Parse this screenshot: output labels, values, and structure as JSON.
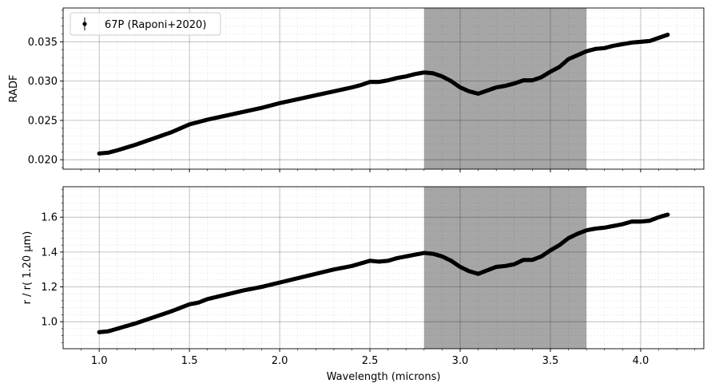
{
  "chart_data": [
    {
      "type": "scatter",
      "panel": "top",
      "ylabel": "RADF",
      "xlim": [
        0.8,
        4.35
      ],
      "ylim": [
        0.0188,
        0.0393
      ],
      "yticks": [
        0.02,
        0.025,
        0.03,
        0.035
      ],
      "ytick_labels": [
        "0.020",
        "0.025",
        "0.030",
        "0.035"
      ],
      "shaded_region_x": [
        2.8,
        3.7
      ],
      "shade_color": "#a6a6a6",
      "grid": true,
      "minor_grid": true,
      "legend": {
        "placement": "top-left",
        "entries": [
          "67P (Raponi+2020)"
        ]
      },
      "series": [
        {
          "name": "67P (Raponi+2020)",
          "color": "#000000",
          "x": [
            1.0,
            1.05,
            1.1,
            1.2,
            1.3,
            1.4,
            1.45,
            1.5,
            1.55,
            1.6,
            1.7,
            1.8,
            1.9,
            2.0,
            2.1,
            2.2,
            2.3,
            2.4,
            2.45,
            2.5,
            2.55,
            2.6,
            2.65,
            2.7,
            2.75,
            2.8,
            2.85,
            2.9,
            2.95,
            3.0,
            3.05,
            3.1,
            3.15,
            3.2,
            3.25,
            3.3,
            3.35,
            3.4,
            3.45,
            3.5,
            3.55,
            3.6,
            3.65,
            3.7,
            3.75,
            3.8,
            3.85,
            3.9,
            3.95,
            4.0,
            4.05,
            4.1,
            4.15
          ],
          "y": [
            0.0208,
            0.0209,
            0.0212,
            0.0219,
            0.0227,
            0.0235,
            0.024,
            0.0245,
            0.0248,
            0.0251,
            0.0256,
            0.0261,
            0.0266,
            0.0272,
            0.0277,
            0.0282,
            0.0287,
            0.0292,
            0.0295,
            0.0299,
            0.0299,
            0.0301,
            0.0304,
            0.0306,
            0.0309,
            0.0311,
            0.031,
            0.0306,
            0.03,
            0.0292,
            0.0287,
            0.0284,
            0.0288,
            0.0292,
            0.0294,
            0.0297,
            0.0301,
            0.0301,
            0.0305,
            0.0312,
            0.0318,
            0.0328,
            0.0333,
            0.0338,
            0.0341,
            0.0342,
            0.0345,
            0.0347,
            0.0349,
            0.035,
            0.0351,
            0.0355,
            0.0359
          ]
        }
      ]
    },
    {
      "type": "scatter",
      "panel": "bottom",
      "xlabel": "Wavelength (microns)",
      "ylabel": "r / r( 1.20 μm)",
      "xlim": [
        0.8,
        4.35
      ],
      "ylim": [
        0.845,
        1.775
      ],
      "xticks": [
        1.0,
        1.5,
        2.0,
        2.5,
        3.0,
        3.5,
        4.0
      ],
      "xtick_labels": [
        "1.0",
        "1.5",
        "2.0",
        "2.5",
        "3.0",
        "3.5",
        "4.0"
      ],
      "yticks": [
        1.0,
        1.2,
        1.4,
        1.6
      ],
      "ytick_labels": [
        "1.0",
        "1.2",
        "1.4",
        "1.6"
      ],
      "shaded_region_x": [
        2.8,
        3.7
      ],
      "shade_color": "#a6a6a6",
      "grid": true,
      "minor_grid": true,
      "series": [
        {
          "name": "67P (Raponi+2020)",
          "color": "#000000",
          "x": [
            1.0,
            1.05,
            1.1,
            1.2,
            1.3,
            1.4,
            1.45,
            1.5,
            1.55,
            1.6,
            1.7,
            1.8,
            1.9,
            2.0,
            2.1,
            2.2,
            2.3,
            2.4,
            2.45,
            2.5,
            2.55,
            2.6,
            2.65,
            2.7,
            2.75,
            2.8,
            2.85,
            2.9,
            2.95,
            3.0,
            3.05,
            3.1,
            3.15,
            3.2,
            3.25,
            3.3,
            3.35,
            3.4,
            3.45,
            3.5,
            3.55,
            3.6,
            3.65,
            3.7,
            3.75,
            3.8,
            3.85,
            3.9,
            3.95,
            4.0,
            4.05,
            4.1,
            4.15
          ],
          "y": [
            0.94,
            0.945,
            0.96,
            0.99,
            1.025,
            1.06,
            1.08,
            1.1,
            1.11,
            1.13,
            1.155,
            1.18,
            1.2,
            1.225,
            1.25,
            1.275,
            1.3,
            1.32,
            1.335,
            1.35,
            1.345,
            1.35,
            1.365,
            1.375,
            1.385,
            1.395,
            1.39,
            1.375,
            1.35,
            1.315,
            1.29,
            1.275,
            1.295,
            1.315,
            1.32,
            1.33,
            1.355,
            1.355,
            1.375,
            1.41,
            1.44,
            1.48,
            1.505,
            1.525,
            1.535,
            1.54,
            1.55,
            1.56,
            1.575,
            1.575,
            1.58,
            1.6,
            1.615
          ]
        }
      ]
    }
  ]
}
